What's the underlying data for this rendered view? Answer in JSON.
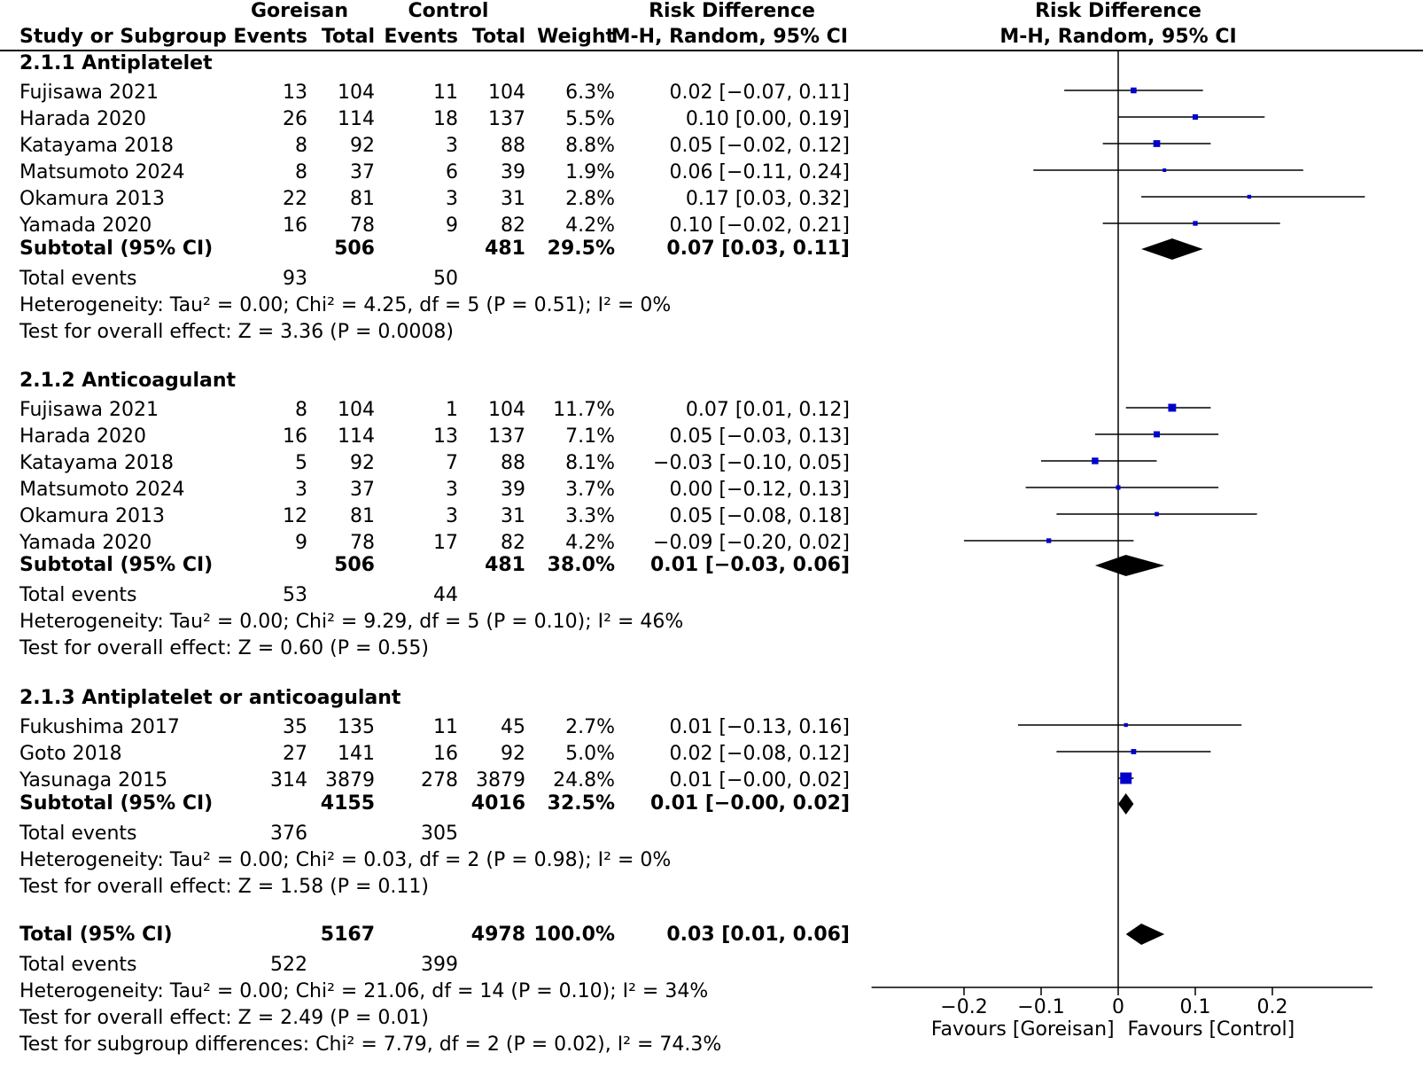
{
  "headers": {
    "goreisan": "Goreisan",
    "control": "Control",
    "rd_left": "Risk Difference",
    "rd_right": "Risk Difference",
    "study": "Study or Subgroup",
    "g_events": "Events",
    "g_total": "Total",
    "c_events": "Events",
    "c_total": "Total",
    "weight": "Weight",
    "method_left": "M-H, Random, 95% CI",
    "method_right": "M-H, Random, 95% CI"
  },
  "groups": [
    {
      "title": "2.1.1 Antiplatelet",
      "studies": [
        {
          "name": "Fujisawa 2021",
          "ge": "13",
          "gt": "104",
          "ce": "11",
          "ct": "104",
          "w": "6.3%",
          "ci": "0.02 [−0.07, 0.11]"
        },
        {
          "name": "Harada 2020",
          "ge": "26",
          "gt": "114",
          "ce": "18",
          "ct": "137",
          "w": "5.5%",
          "ci": "0.10 [0.00, 0.19]"
        },
        {
          "name": "Katayama 2018",
          "ge": "8",
          "gt": "92",
          "ce": "3",
          "ct": "88",
          "w": "8.8%",
          "ci": "0.05 [−0.02, 0.12]"
        },
        {
          "name": "Matsumoto 2024",
          "ge": "8",
          "gt": "37",
          "ce": "6",
          "ct": "39",
          "w": "1.9%",
          "ci": "0.06 [−0.11, 0.24]"
        },
        {
          "name": "Okamura 2013",
          "ge": "22",
          "gt": "81",
          "ce": "3",
          "ct": "31",
          "w": "2.8%",
          "ci": "0.17 [0.03, 0.32]"
        },
        {
          "name": "Yamada 2020",
          "ge": "16",
          "gt": "78",
          "ce": "9",
          "ct": "82",
          "w": "4.2%",
          "ci": "0.10 [−0.02, 0.21]"
        }
      ],
      "subtotal": {
        "label": "Subtotal (95% CI)",
        "gt": "506",
        "ct": "481",
        "w": "29.5%",
        "ci": "0.07 [0.03, 0.11]"
      },
      "events": {
        "label": "Total events",
        "ge": "93",
        "ce": "50"
      },
      "heterogeneity": "Heterogeneity: Tau² = 0.00; Chi² = 4.25, df = 5 (P = 0.51); I² = 0%",
      "overall": "Test for overall effect: Z = 3.36 (P = 0.0008)"
    },
    {
      "title": "2.1.2 Anticoagulant",
      "studies": [
        {
          "name": "Fujisawa 2021",
          "ge": "8",
          "gt": "104",
          "ce": "1",
          "ct": "104",
          "w": "11.7%",
          "ci": "0.07 [0.01, 0.12]"
        },
        {
          "name": "Harada 2020",
          "ge": "16",
          "gt": "114",
          "ce": "13",
          "ct": "137",
          "w": "7.1%",
          "ci": "0.05 [−0.03, 0.13]"
        },
        {
          "name": "Katayama 2018",
          "ge": "5",
          "gt": "92",
          "ce": "7",
          "ct": "88",
          "w": "8.1%",
          "ci": "−0.03 [−0.10, 0.05]"
        },
        {
          "name": "Matsumoto 2024",
          "ge": "3",
          "gt": "37",
          "ce": "3",
          "ct": "39",
          "w": "3.7%",
          "ci": "0.00 [−0.12, 0.13]"
        },
        {
          "name": "Okamura 2013",
          "ge": "12",
          "gt": "81",
          "ce": "3",
          "ct": "31",
          "w": "3.3%",
          "ci": "0.05 [−0.08, 0.18]"
        },
        {
          "name": "Yamada 2020",
          "ge": "9",
          "gt": "78",
          "ce": "17",
          "ct": "82",
          "w": "4.2%",
          "ci": "−0.09 [−0.20, 0.02]"
        }
      ],
      "subtotal": {
        "label": "Subtotal (95% CI)",
        "gt": "506",
        "ct": "481",
        "w": "38.0%",
        "ci": "0.01 [−0.03, 0.06]"
      },
      "events": {
        "label": "Total events",
        "ge": "53",
        "ce": "44"
      },
      "heterogeneity": "Heterogeneity: Tau² = 0.00; Chi² = 9.29, df = 5 (P = 0.10); I² = 46%",
      "overall": "Test for overall effect: Z = 0.60 (P = 0.55)"
    },
    {
      "title": "2.1.3 Antiplatelet or anticoagulant",
      "studies": [
        {
          "name": "Fukushima 2017",
          "ge": "35",
          "gt": "135",
          "ce": "11",
          "ct": "45",
          "w": "2.7%",
          "ci": "0.01 [−0.13, 0.16]"
        },
        {
          "name": "Goto 2018",
          "ge": "27",
          "gt": "141",
          "ce": "16",
          "ct": "92",
          "w": "5.0%",
          "ci": "0.02 [−0.08, 0.12]"
        },
        {
          "name": "Yasunaga 2015",
          "ge": "314",
          "gt": "3879",
          "ce": "278",
          "ct": "3879",
          "w": "24.8%",
          "ci": "0.01 [−0.00, 0.02]"
        }
      ],
      "subtotal": {
        "label": "Subtotal (95% CI)",
        "gt": "4155",
        "ct": "4016",
        "w": "32.5%",
        "ci": "0.01 [−0.00, 0.02]"
      },
      "events": {
        "label": "Total events",
        "ge": "376",
        "ce": "305"
      },
      "heterogeneity": "Heterogeneity: Tau² = 0.00; Chi² = 0.03, df = 2 (P = 0.98); I² = 0%",
      "overall": "Test for overall effect: Z = 1.58 (P = 0.11)"
    }
  ],
  "total": {
    "label": "Total (95% CI)",
    "gt": "5167",
    "ct": "4978",
    "w": "100.0%",
    "ci": "0.03 [0.01, 0.06]"
  },
  "total_events": {
    "label": "Total events",
    "ge": "522",
    "ce": "399"
  },
  "total_heterogeneity": "Heterogeneity: Tau² = 0.00; Chi² = 21.06, df = 14 (P = 0.10); I² = 34%",
  "total_overall": "Test for overall effect: Z = 2.49 (P = 0.01)",
  "subgroup_diff": "Test for subgroup differences: Chi² = 7.79, df = 2 (P = 0.02), I² = 74.3%",
  "chart_data": {
    "type": "forest",
    "xlim": [
      -0.32,
      0.33
    ],
    "ticks": [
      -0.2,
      -0.1,
      0,
      0.1,
      0.2
    ],
    "tick_labels": [
      "−0.2",
      "−0.1",
      "0",
      "0.1",
      "0.2"
    ],
    "favours_left": "Favours [Goreisan]",
    "favours_right": "Favours [Control]",
    "study_color": "#0000cc",
    "diamond_color": "#000000",
    "groups": [
      {
        "studies": [
          {
            "est": 0.02,
            "lo": -0.07,
            "hi": 0.11,
            "weight": 6.3
          },
          {
            "est": 0.1,
            "lo": 0.0,
            "hi": 0.19,
            "weight": 5.5
          },
          {
            "est": 0.05,
            "lo": -0.02,
            "hi": 0.12,
            "weight": 8.8
          },
          {
            "est": 0.06,
            "lo": -0.11,
            "hi": 0.24,
            "weight": 1.9
          },
          {
            "est": 0.17,
            "lo": 0.03,
            "hi": 0.32,
            "weight": 2.8
          },
          {
            "est": 0.1,
            "lo": -0.02,
            "hi": 0.21,
            "weight": 4.2
          }
        ],
        "subtotal": {
          "est": 0.07,
          "lo": 0.03,
          "hi": 0.11
        }
      },
      {
        "studies": [
          {
            "est": 0.07,
            "lo": 0.01,
            "hi": 0.12,
            "weight": 11.7
          },
          {
            "est": 0.05,
            "lo": -0.03,
            "hi": 0.13,
            "weight": 7.1
          },
          {
            "est": -0.03,
            "lo": -0.1,
            "hi": 0.05,
            "weight": 8.1
          },
          {
            "est": 0.0,
            "lo": -0.12,
            "hi": 0.13,
            "weight": 3.7
          },
          {
            "est": 0.05,
            "lo": -0.08,
            "hi": 0.18,
            "weight": 3.3
          },
          {
            "est": -0.09,
            "lo": -0.2,
            "hi": 0.02,
            "weight": 4.2
          }
        ],
        "subtotal": {
          "est": 0.01,
          "lo": -0.03,
          "hi": 0.06
        }
      },
      {
        "studies": [
          {
            "est": 0.01,
            "lo": -0.13,
            "hi": 0.16,
            "weight": 2.7
          },
          {
            "est": 0.02,
            "lo": -0.08,
            "hi": 0.12,
            "weight": 5.0
          },
          {
            "est": 0.01,
            "lo": -0.0,
            "hi": 0.02,
            "weight": 24.8
          }
        ],
        "subtotal": {
          "est": 0.01,
          "lo": -0.0,
          "hi": 0.02
        }
      }
    ],
    "total": {
      "est": 0.03,
      "lo": 0.01,
      "hi": 0.06
    }
  }
}
